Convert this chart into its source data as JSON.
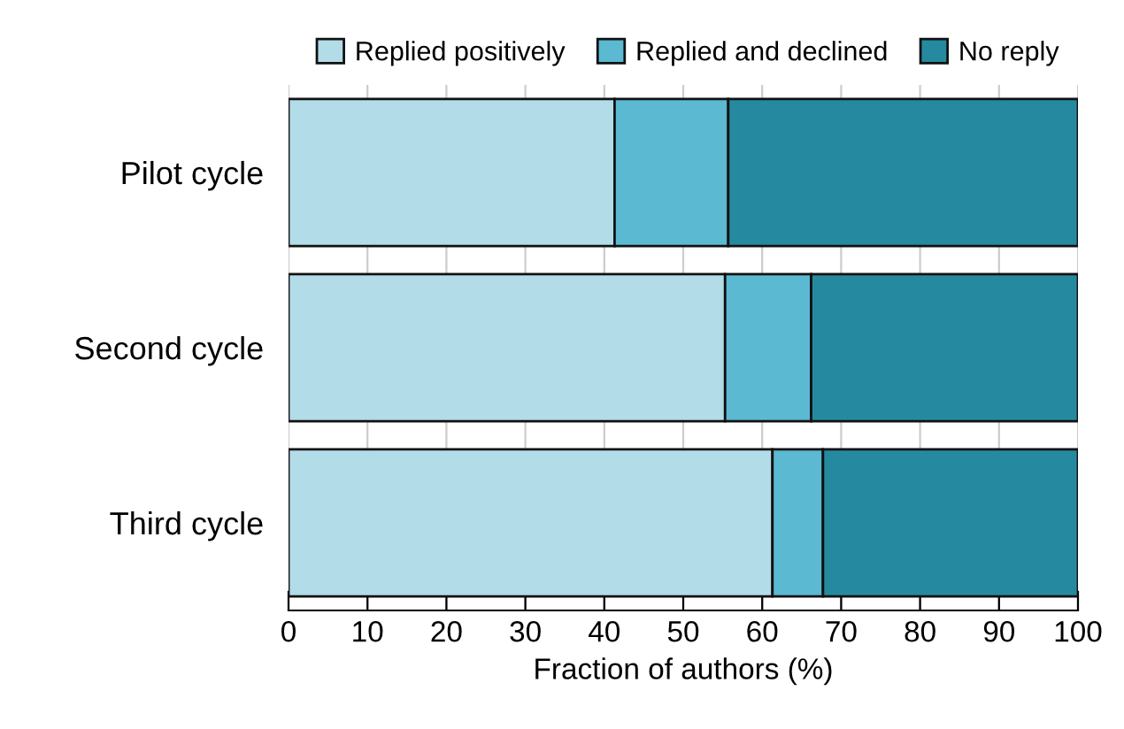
{
  "chart_data": {
    "type": "bar",
    "orientation": "horizontal",
    "stacked": true,
    "xlabel": "Fraction of authors (%)",
    "categories": [
      "Pilot cycle",
      "Second cycle",
      "Third cycle"
    ],
    "series": [
      {
        "name": "Replied positively",
        "color": "#b2dce8",
        "values": [
          41.3,
          55.3,
          61.3
        ]
      },
      {
        "name": "Replied and declined",
        "color": "#5bb9d2",
        "values": [
          14.4,
          10.9,
          6.4
        ]
      },
      {
        "name": "No reply",
        "color": "#258aa0",
        "values": [
          44.3,
          33.8,
          32.3
        ]
      }
    ],
    "xlim": [
      0,
      100
    ],
    "xticks": [
      0,
      10,
      20,
      30,
      40,
      50,
      60,
      70,
      80,
      90,
      100
    ],
    "grid": "x",
    "legend": "top"
  }
}
